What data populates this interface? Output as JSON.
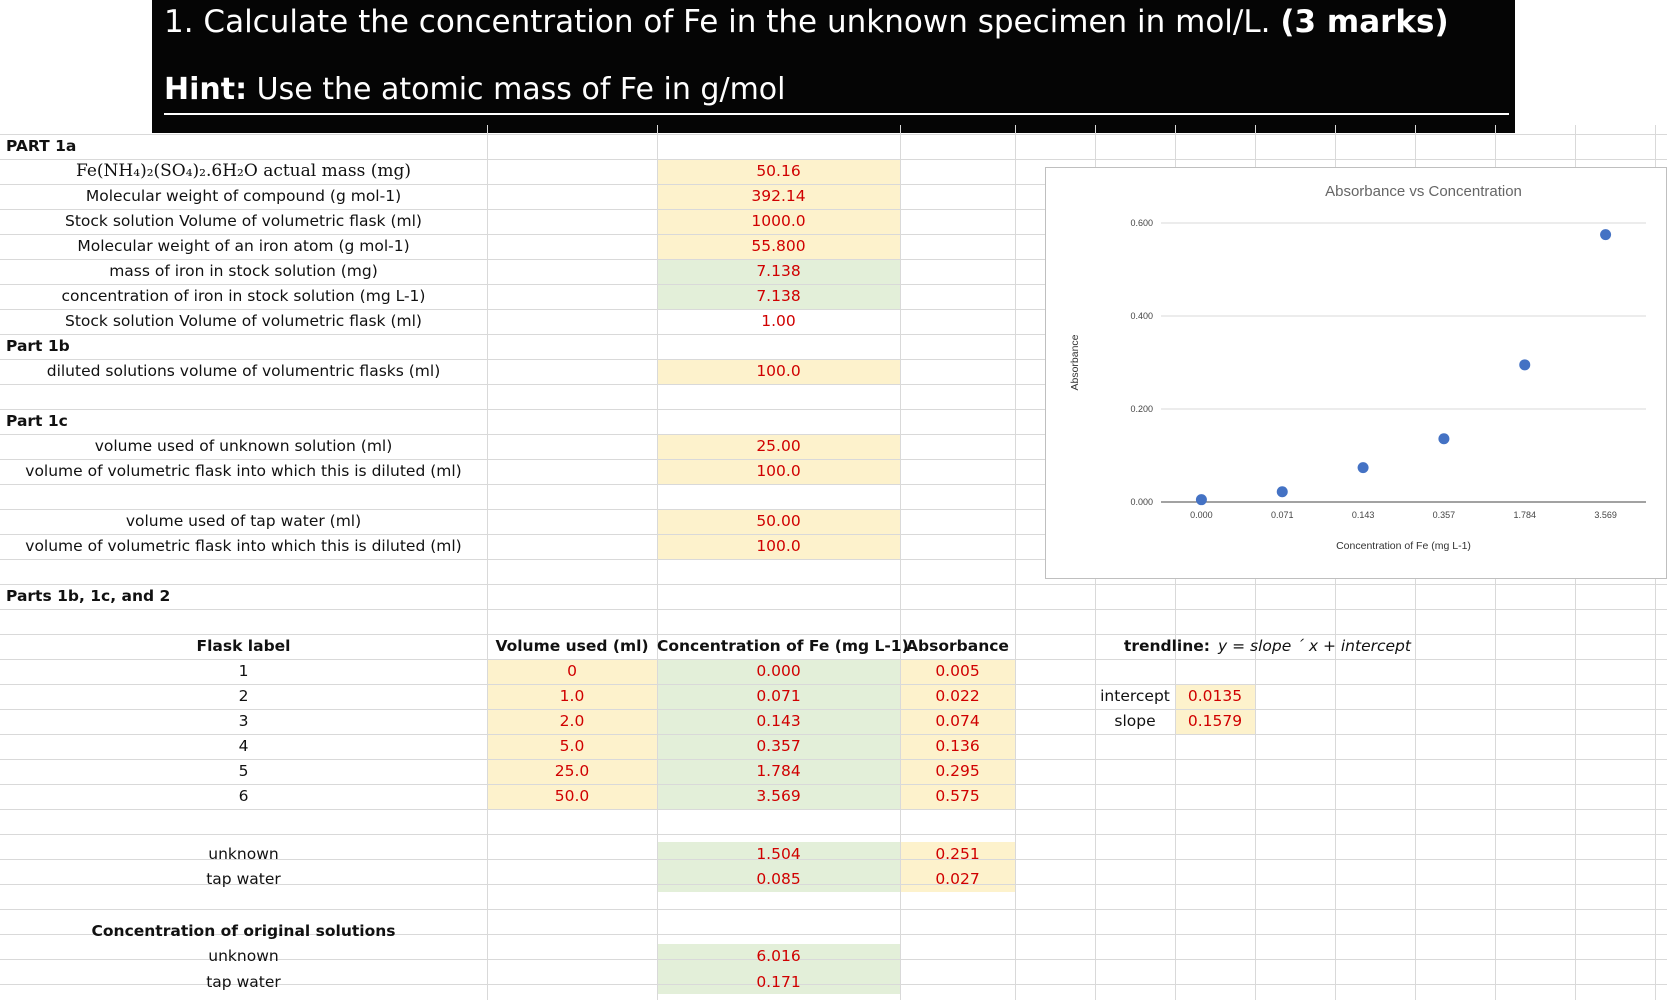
{
  "header": {
    "question_prefix": "1.  Calculate the concentration of Fe in the unknown specimen in mol/L. ",
    "question_marks": "(3 marks)",
    "hint_label": "Hint:",
    "hint_text": " Use the atomic mass of Fe in g/mol"
  },
  "part1a": {
    "title": "PART 1a",
    "rows": [
      {
        "label": "Fe(NH₄)₂(SO₄)₂.6H₂O actual mass (mg)",
        "value": "50.16"
      },
      {
        "label": "Molecular weight of compound (g mol-1)",
        "value": "392.14"
      },
      {
        "label": "Stock solution Volume of volumetric flask (ml)",
        "value": "1000.0"
      },
      {
        "label": "Molecular weight of an iron atom (g mol-1)",
        "value": "55.800"
      },
      {
        "label": "mass of iron in stock solution (mg)",
        "value": "7.138"
      },
      {
        "label": "concentration of iron in stock solution (mg L-1)",
        "value": "7.138"
      },
      {
        "label": "Stock solution Volume of volumetric flask (ml)",
        "value": "1.00"
      }
    ]
  },
  "part1b": {
    "title": "Part 1b",
    "rows": [
      {
        "label": "diluted solutions volume of volumentric flasks (ml)",
        "value": "100.0"
      }
    ]
  },
  "part1c": {
    "title": "Part 1c",
    "rows": [
      {
        "label": "volume used of unknown solution (ml)",
        "value": "25.00"
      },
      {
        "label": "volume of volumetric flask into which this is diluted (ml)",
        "value": "100.0"
      },
      {
        "label": "volume used of tap water (ml)",
        "value": "50.00"
      },
      {
        "label": "volume of volumetric flask into which this is diluted (ml)",
        "value": "100.0"
      }
    ]
  },
  "parts2": {
    "title": "Parts 1b, 1c, and 2",
    "columns": [
      "Flask label",
      "Volume used (ml)",
      "Concentration of Fe (mg L-1)",
      "Absorbance"
    ],
    "rows": [
      [
        "1",
        "0",
        "0.000",
        "0.005"
      ],
      [
        "2",
        "1.0",
        "0.071",
        "0.022"
      ],
      [
        "3",
        "2.0",
        "0.143",
        "0.074"
      ],
      [
        "4",
        "5.0",
        "0.357",
        "0.136"
      ],
      [
        "5",
        "25.0",
        "1.784",
        "0.295"
      ],
      [
        "6",
        "50.0",
        "3.569",
        "0.575"
      ]
    ],
    "samples": [
      [
        "unknown",
        "1.504",
        "0.251"
      ],
      [
        "tap water",
        "0.085",
        "0.027"
      ]
    ],
    "original_title": "Concentration of original solutions",
    "original": [
      [
        "unknown",
        "6.016"
      ],
      [
        "tap water",
        "0.171"
      ]
    ]
  },
  "trendline": {
    "label": "trendline:",
    "equation": "y = slope ´ x + intercept",
    "intercept_label": "intercept",
    "intercept_value": "0.0135",
    "slope_label": "slope",
    "slope_value": "0.1579"
  },
  "colors": {
    "input_fill": "#fdf2cc",
    "calc_fill": "#e3efd9",
    "value_text": "#d00000",
    "point": "#4472c4"
  },
  "chart_data": {
    "type": "scatter",
    "title": "Absorbance vs Concentration",
    "xlabel": "Concentration of Fe (mg L-1)",
    "ylabel": "Absorbance",
    "categories": [
      "0.000",
      "0.071",
      "0.143",
      "0.357",
      "1.784",
      "3.569"
    ],
    "values": [
      0.005,
      0.022,
      0.074,
      0.136,
      0.295,
      0.575
    ],
    "y_ticks": [
      "0.000",
      "0.200",
      "0.400",
      "0.600"
    ],
    "ylim": [
      0,
      0.6
    ],
    "grid": true,
    "legend": "none"
  }
}
